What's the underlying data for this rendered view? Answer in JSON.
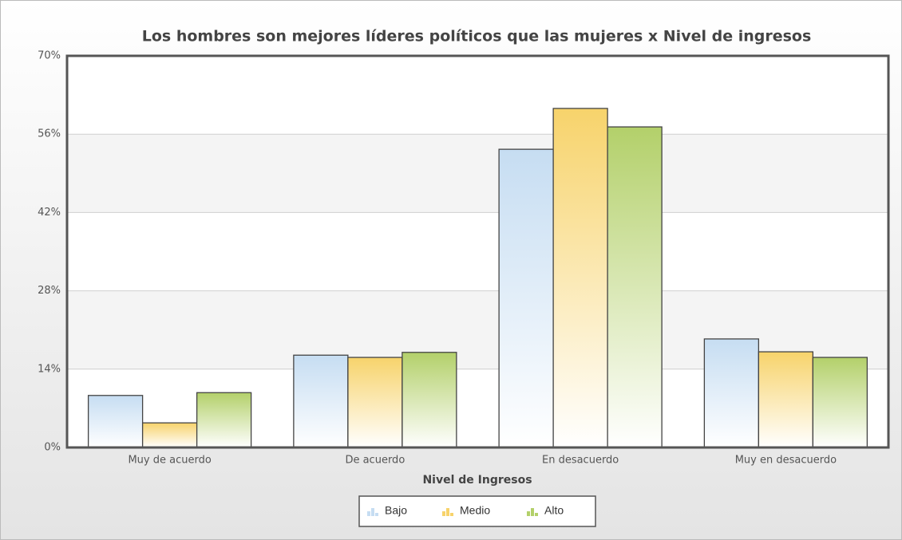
{
  "chart_data": {
    "type": "bar",
    "title": "Los hombres son mejores líderes políticos que las mujeres x Nivel de ingresos",
    "x_label": "Nivel de Ingresos",
    "categories": [
      "Muy de acuerdo",
      "De acuerdo",
      "En desacuerdo",
      "Muy en desacuerdo"
    ],
    "series": [
      {
        "name": "Bajo",
        "color": "#c6ddf2",
        "values": [
          9.3,
          16.5,
          53.3,
          19.4
        ]
      },
      {
        "name": "Medio",
        "color": "#f7d36b",
        "values": [
          4.4,
          16.1,
          60.6,
          17.1
        ]
      },
      {
        "name": "Alto",
        "color": "#b3d06a",
        "values": [
          9.8,
          17.0,
          57.3,
          16.1
        ]
      }
    ],
    "ylim": [
      0,
      70
    ],
    "yticks": [
      {
        "value": 0,
        "label": "0%"
      },
      {
        "value": 14,
        "label": "14%"
      },
      {
        "value": 28,
        "label": "28%"
      },
      {
        "value": 42,
        "label": "42%"
      },
      {
        "value": 56,
        "label": "56%"
      },
      {
        "value": 70,
        "label": "70%"
      }
    ],
    "grid": true,
    "legend": "bottom"
  }
}
